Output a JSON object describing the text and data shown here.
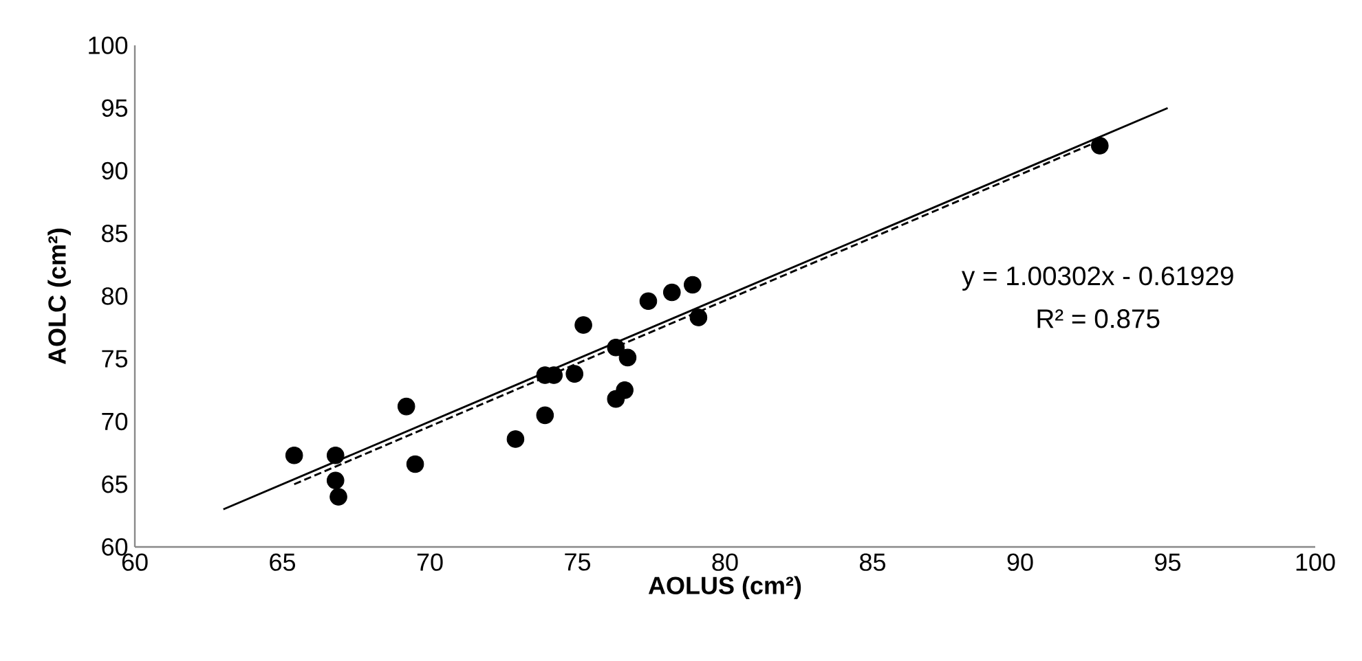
{
  "chart_data": {
    "type": "scatter",
    "xlabel": "AOLUS (cm²)",
    "ylabel": "AOLC (cm²)",
    "xlim": [
      60,
      100
    ],
    "ylim": [
      60,
      100
    ],
    "xticks": [
      60,
      65,
      70,
      75,
      80,
      85,
      90,
      95,
      100
    ],
    "yticks": [
      60,
      65,
      70,
      75,
      80,
      85,
      90,
      95,
      100
    ],
    "annotations": [
      "y = 1.00302x - 0.61929",
      "R² = 0.875"
    ],
    "series": [
      {
        "color": "#000000",
        "marker": "circle",
        "x": [
          65.4,
          66.8,
          66.8,
          66.9,
          69.2,
          69.5,
          72.9,
          73.9,
          73.9,
          74.2,
          74.9,
          76.3,
          76.6,
          76.7,
          76.3,
          75.2,
          77.4,
          78.2,
          78.9,
          79.1,
          92.7
        ],
        "values": [
          67.3,
          67.3,
          65.3,
          64.0,
          71.2,
          66.6,
          68.6,
          70.5,
          73.7,
          73.7,
          73.8,
          71.8,
          72.5,
          75.1,
          75.9,
          77.7,
          79.6,
          80.3,
          80.9,
          78.3,
          92.0
        ]
      },
      {
        "type": "line",
        "color": "#000000",
        "line_style": "solid",
        "marker": "none",
        "x": [
          63,
          95
        ],
        "values": [
          63,
          95
        ]
      },
      {
        "type": "line",
        "color": "#000000",
        "line_style": "dashed",
        "marker": "none",
        "x": [
          65.4,
          92.7
        ],
        "values": [
          65.0,
          92.4
        ]
      }
    ]
  }
}
